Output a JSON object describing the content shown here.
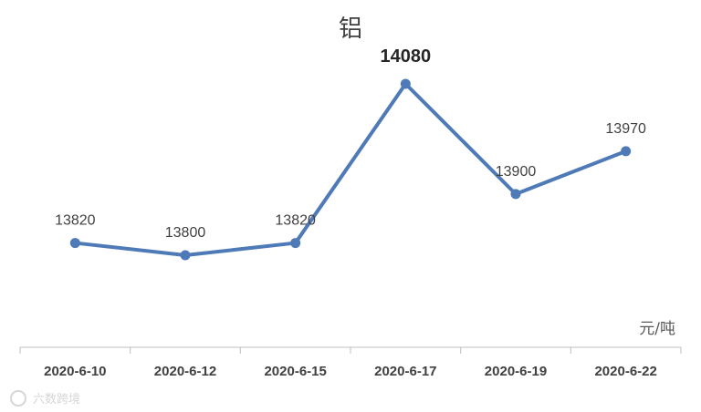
{
  "chart_data": {
    "type": "line",
    "title": "铝",
    "unit": "元/吨",
    "categories": [
      "2020-6-10",
      "2020-6-12",
      "2020-6-15",
      "2020-6-17",
      "2020-6-19",
      "2020-6-22"
    ],
    "values": [
      13820,
      13800,
      13820,
      14080,
      13900,
      13970
    ],
    "data_labels": [
      "13820",
      "13800",
      "13820",
      "14080",
      "13900",
      "13970"
    ],
    "highlighted_label_index": 3,
    "series_color": "#4e7ab7",
    "axis_color": "#bfbfbf",
    "grid": false,
    "legend": "none"
  },
  "watermark": "六数跨境"
}
